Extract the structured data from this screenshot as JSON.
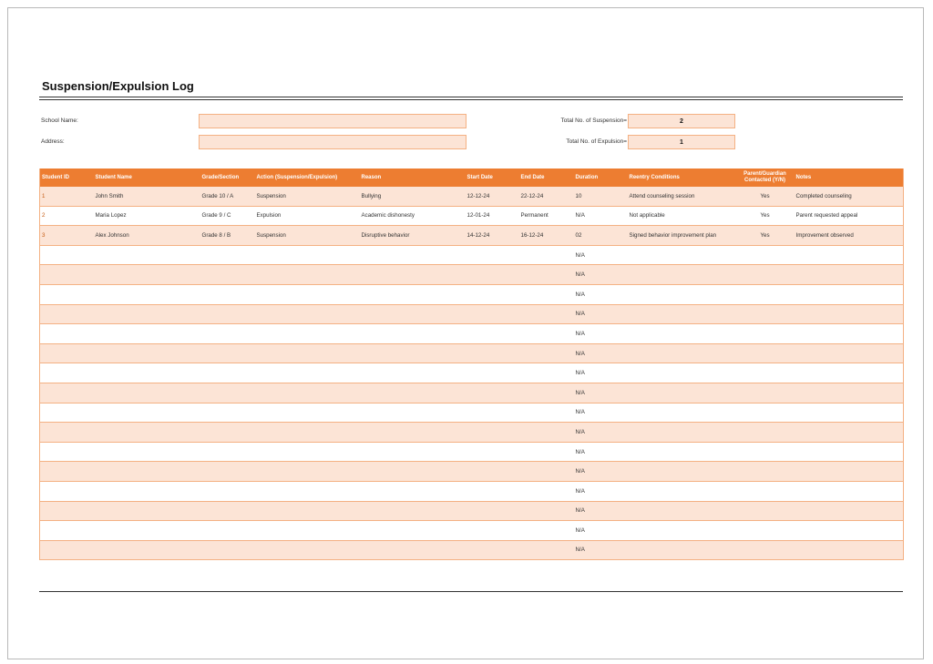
{
  "title": "Suspension/Expulsion Log",
  "fields": {
    "school_name_label": "School Name:",
    "school_name_value": "",
    "address_label": "Address:",
    "address_value": "",
    "total_suspension_label": "Total No. of Suspension=",
    "total_suspension_value": "2",
    "total_expulsion_label": "Total No. of Expulsion=",
    "total_expulsion_value": "1"
  },
  "table": {
    "headers": {
      "student_id": "Student ID",
      "student_name": "Student Name",
      "grade": "Grade/Section",
      "action": "Action (Suspension/Expulsion)",
      "reason": "Reason",
      "start_date": "Start Date",
      "end_date": "End Date",
      "duration": "Duration",
      "reentry": "Reentry Conditions",
      "contacted": "Parent/Guardian Contacted (Y/N)",
      "notes": "Notes"
    },
    "rows": [
      {
        "student_id": "1",
        "student_name": "John Smith",
        "grade": "Grade 10 / A",
        "action": "Suspension",
        "reason": "Bullying",
        "start_date": "12-12-24",
        "end_date": "22-12-24",
        "duration": "10",
        "reentry": "Attend counseling session",
        "contacted": "Yes",
        "notes": "Completed counseling"
      },
      {
        "student_id": "2",
        "student_name": "Maria Lopez",
        "grade": "Grade 9 / C",
        "action": "Expulsion",
        "reason": "Academic dishonesty",
        "start_date": "12-01-24",
        "end_date": "Permanent",
        "duration": "N/A",
        "reentry": "Not applicable",
        "contacted": "Yes",
        "notes": "Parent requested appeal"
      },
      {
        "student_id": "3",
        "student_name": "Alex Johnson",
        "grade": "Grade 8 / B",
        "action": "Suspension",
        "reason": "Disruptive behavior",
        "start_date": "14-12-24",
        "end_date": "16-12-24",
        "duration": "02",
        "reentry": "Signed behavior improvement plan",
        "contacted": "Yes",
        "notes": "Improvement observed"
      },
      {
        "student_id": "",
        "student_name": "",
        "grade": "",
        "action": "",
        "reason": "",
        "start_date": "",
        "end_date": "",
        "duration": "N/A",
        "reentry": "",
        "contacted": "",
        "notes": ""
      },
      {
        "student_id": "",
        "student_name": "",
        "grade": "",
        "action": "",
        "reason": "",
        "start_date": "",
        "end_date": "",
        "duration": "N/A",
        "reentry": "",
        "contacted": "",
        "notes": ""
      },
      {
        "student_id": "",
        "student_name": "",
        "grade": "",
        "action": "",
        "reason": "",
        "start_date": "",
        "end_date": "",
        "duration": "N/A",
        "reentry": "",
        "contacted": "",
        "notes": ""
      },
      {
        "student_id": "",
        "student_name": "",
        "grade": "",
        "action": "",
        "reason": "",
        "start_date": "",
        "end_date": "",
        "duration": "N/A",
        "reentry": "",
        "contacted": "",
        "notes": ""
      },
      {
        "student_id": "",
        "student_name": "",
        "grade": "",
        "action": "",
        "reason": "",
        "start_date": "",
        "end_date": "",
        "duration": "N/A",
        "reentry": "",
        "contacted": "",
        "notes": ""
      },
      {
        "student_id": "",
        "student_name": "",
        "grade": "",
        "action": "",
        "reason": "",
        "start_date": "",
        "end_date": "",
        "duration": "N/A",
        "reentry": "",
        "contacted": "",
        "notes": ""
      },
      {
        "student_id": "",
        "student_name": "",
        "grade": "",
        "action": "",
        "reason": "",
        "start_date": "",
        "end_date": "",
        "duration": "N/A",
        "reentry": "",
        "contacted": "",
        "notes": ""
      },
      {
        "student_id": "",
        "student_name": "",
        "grade": "",
        "action": "",
        "reason": "",
        "start_date": "",
        "end_date": "",
        "duration": "N/A",
        "reentry": "",
        "contacted": "",
        "notes": ""
      },
      {
        "student_id": "",
        "student_name": "",
        "grade": "",
        "action": "",
        "reason": "",
        "start_date": "",
        "end_date": "",
        "duration": "N/A",
        "reentry": "",
        "contacted": "",
        "notes": ""
      },
      {
        "student_id": "",
        "student_name": "",
        "grade": "",
        "action": "",
        "reason": "",
        "start_date": "",
        "end_date": "",
        "duration": "N/A",
        "reentry": "",
        "contacted": "",
        "notes": ""
      },
      {
        "student_id": "",
        "student_name": "",
        "grade": "",
        "action": "",
        "reason": "",
        "start_date": "",
        "end_date": "",
        "duration": "N/A",
        "reentry": "",
        "contacted": "",
        "notes": ""
      },
      {
        "student_id": "",
        "student_name": "",
        "grade": "",
        "action": "",
        "reason": "",
        "start_date": "",
        "end_date": "",
        "duration": "N/A",
        "reentry": "",
        "contacted": "",
        "notes": ""
      },
      {
        "student_id": "",
        "student_name": "",
        "grade": "",
        "action": "",
        "reason": "",
        "start_date": "",
        "end_date": "",
        "duration": "N/A",
        "reentry": "",
        "contacted": "",
        "notes": ""
      },
      {
        "student_id": "",
        "student_name": "",
        "grade": "",
        "action": "",
        "reason": "",
        "start_date": "",
        "end_date": "",
        "duration": "N/A",
        "reentry": "",
        "contacted": "",
        "notes": ""
      },
      {
        "student_id": "",
        "student_name": "",
        "grade": "",
        "action": "",
        "reason": "",
        "start_date": "",
        "end_date": "",
        "duration": "N/A",
        "reentry": "",
        "contacted": "",
        "notes": ""
      },
      {
        "student_id": "",
        "student_name": "",
        "grade": "",
        "action": "",
        "reason": "",
        "start_date": "",
        "end_date": "",
        "duration": "N/A",
        "reentry": "",
        "contacted": "",
        "notes": ""
      }
    ]
  },
  "colors": {
    "header_bg": "#ed7d31",
    "band_bg": "#fce4d6",
    "border": "#f4b183"
  }
}
